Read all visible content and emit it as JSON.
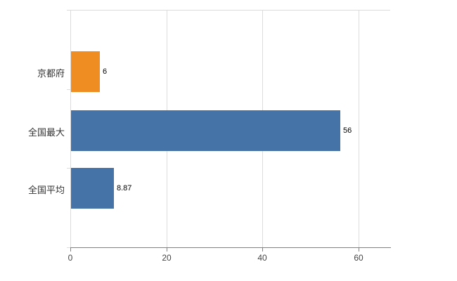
{
  "chart_data": {
    "type": "bar",
    "orientation": "horizontal",
    "title": "",
    "xlabel": "",
    "ylabel": "",
    "categories": [
      "京都府",
      "全国最大",
      "全国平均"
    ],
    "values": [
      6,
      56,
      8.87
    ],
    "value_labels": [
      "6",
      "56",
      "8.87"
    ],
    "bar_colors": [
      "#ef8d22",
      "#4572a7",
      "#4572a7"
    ],
    "x_ticks": [
      0,
      20,
      40,
      60
    ],
    "x_tick_labels": [
      "0",
      "20",
      "40",
      "60"
    ],
    "xlim": [
      0,
      66.6
    ],
    "grid": true,
    "legend": "none",
    "grid_color": "#dcdcdc",
    "axis_color": "#808080",
    "background_color": "#ffffff"
  }
}
